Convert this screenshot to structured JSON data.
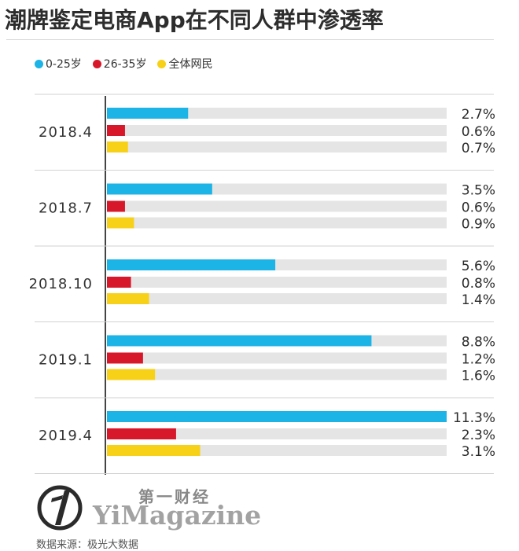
{
  "title": "潮牌鉴定电商App在不同人群中渗透率",
  "colors": {
    "series_1": "#1cb3e6",
    "series_2": "#d7182a",
    "series_3": "#f7d117",
    "track": "#e6e5e5",
    "axis": "#444444"
  },
  "brand": {
    "cn": "第一财经",
    "en": "YiMagazine",
    "logo_icon": "yimagazine-logo-icon"
  },
  "source": "数据来源：极光大数据",
  "chart_data": {
    "type": "bar",
    "orientation": "horizontal",
    "categories": [
      "2018.4",
      "2018.7",
      "2018.10",
      "2019.1",
      "2019.4"
    ],
    "series": [
      {
        "name": "0-25岁",
        "values": [
          2.7,
          3.5,
          5.6,
          8.8,
          11.3
        ],
        "labels": [
          "2.7%",
          "3.5%",
          "5.6%",
          "8.8%",
          "11.3%"
        ]
      },
      {
        "name": "26-35岁",
        "values": [
          0.6,
          0.6,
          0.8,
          1.2,
          2.3
        ],
        "labels": [
          "0.6%",
          "0.6%",
          "0.8%",
          "1.2%",
          "2.3%"
        ]
      },
      {
        "name": "全体网民",
        "values": [
          0.7,
          0.9,
          1.4,
          1.6,
          3.1
        ],
        "labels": [
          "0.7%",
          "0.9%",
          "1.4%",
          "1.6%",
          "3.1%"
        ]
      }
    ],
    "xlim": [
      0,
      11.3
    ],
    "value_unit": "%",
    "legend_position": "top-left",
    "grid": false
  }
}
